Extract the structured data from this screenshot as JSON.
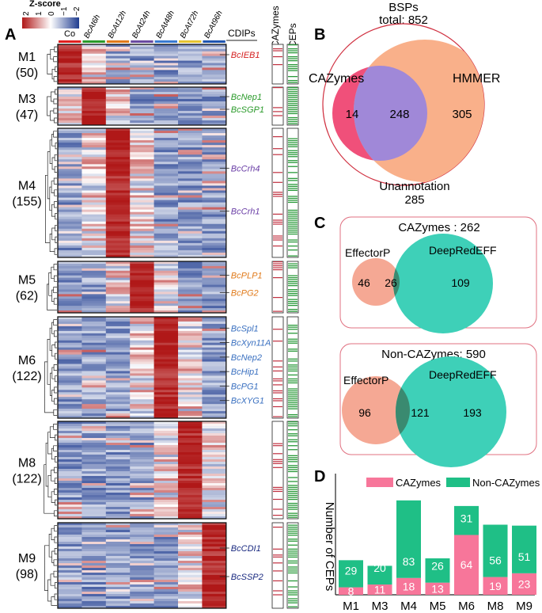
{
  "panel_a": {
    "letter": "A",
    "zscore": {
      "title": "Z-score",
      "ticks": [
        "2",
        "1",
        "0",
        "−1",
        "−2"
      ]
    },
    "columns": [
      "Co",
      "BcAt6h",
      "BcAt12h",
      "BcAt24h",
      "BcAt48h",
      "BcAt72h",
      "BcAt96h"
    ],
    "column_colors": [
      "#e02020",
      "#2a9a2a",
      "#e07a1a",
      "#6a4aa0",
      "#3a7ad0",
      "#e6c430",
      "#1f55b0"
    ],
    "headers": {
      "cdips": "CDIPs",
      "cazymes": "CAZymes",
      "ceps": "CEPs"
    },
    "modules": [
      {
        "name": "M1",
        "count": "(50)",
        "hot": [
          0
        ],
        "genes": [
          {
            "name": "BcIEB1",
            "color": "#d42020"
          }
        ]
      },
      {
        "name": "M3",
        "count": "(47)",
        "hot": [
          1
        ],
        "genes": [
          {
            "name": "BcNep1",
            "color": "#2a9a2a"
          },
          {
            "name": "BcSGP1",
            "color": "#2a9a2a"
          }
        ]
      },
      {
        "name": "M4",
        "count": "(155)",
        "hot": [
          2
        ],
        "genes": [
          {
            "name": "BcCrh4",
            "color": "#6a3ea6"
          },
          {
            "name": "BcCrh1",
            "color": "#6a3ea6"
          }
        ]
      },
      {
        "name": "M5",
        "count": "(62)",
        "hot": [
          3
        ],
        "genes": [
          {
            "name": "BcPLP1",
            "color": "#e07a1a"
          },
          {
            "name": "BcPG2",
            "color": "#e07a1a"
          }
        ]
      },
      {
        "name": "M6",
        "count": "(122)",
        "hot": [
          4
        ],
        "genes": [
          {
            "name": "BcSpl1",
            "color": "#3a70c0"
          },
          {
            "name": "BcXyn11A",
            "color": "#3a70c0"
          },
          {
            "name": "BcNep2",
            "color": "#3a70c0"
          },
          {
            "name": "BcHip1",
            "color": "#3a70c0"
          },
          {
            "name": "BcPG1",
            "color": "#3a70c0"
          },
          {
            "name": "BcXYG1",
            "color": "#3a70c0"
          }
        ]
      },
      {
        "name": "M8",
        "count": "(122)",
        "hot": [
          5
        ],
        "genes": []
      },
      {
        "name": "M9",
        "count": "(98)",
        "hot": [
          6
        ],
        "genes": [
          {
            "name": "BcCDI1",
            "color": "#1a2a80"
          },
          {
            "name": "BcSSP2",
            "color": "#1a2a80"
          }
        ]
      }
    ]
  },
  "panel_b": {
    "letter": "B",
    "title_line1": "BSPs",
    "title_line2": "total: 852",
    "labels": {
      "cazymes": "CAZymes",
      "hmmer": "HMMER",
      "unannotation": "Unannotation"
    },
    "values": {
      "only_cazymes": "14",
      "both": "248",
      "only_hmmer": "305",
      "unannotation": "285"
    },
    "colors": {
      "cazymes": "#f0507a",
      "hmmer": "#f9b08a",
      "overlap": "#a088d8",
      "outline": "#d03040"
    }
  },
  "panel_c": {
    "letter": "C",
    "boxes": [
      {
        "title": "CAZymes : 262",
        "left_label": "EffectorP",
        "right_label": "DeepRedEFF",
        "left_only": "46",
        "overlap": "26",
        "right_only": "109"
      },
      {
        "title": "Non-CAZymes: 590",
        "left_label": "EffectorP",
        "right_label": "DeepRedEFF",
        "left_only": "96",
        "overlap": "121",
        "right_only": "193"
      }
    ],
    "colors": {
      "effectorp": "#f5a894",
      "deepredeff": "#3ed0b8",
      "overlap": "#3a8a70",
      "border": "#e07080"
    }
  },
  "panel_d": {
    "letter": "D",
    "chart_data": {
      "type": "bar",
      "categories": [
        "M1",
        "M3",
        "M4",
        "M5",
        "M6",
        "M8",
        "M9"
      ],
      "series": [
        {
          "name": "CAZymes",
          "color": "#f7769a",
          "values": [
            8,
            11,
            18,
            13,
            64,
            19,
            23
          ]
        },
        {
          "name": "Non-CAZymes",
          "color": "#1fbf86",
          "values": [
            29,
            20,
            83,
            26,
            31,
            56,
            51
          ]
        }
      ],
      "ylabel": "Number of CEPs",
      "stacked": true,
      "legend": "top"
    }
  }
}
